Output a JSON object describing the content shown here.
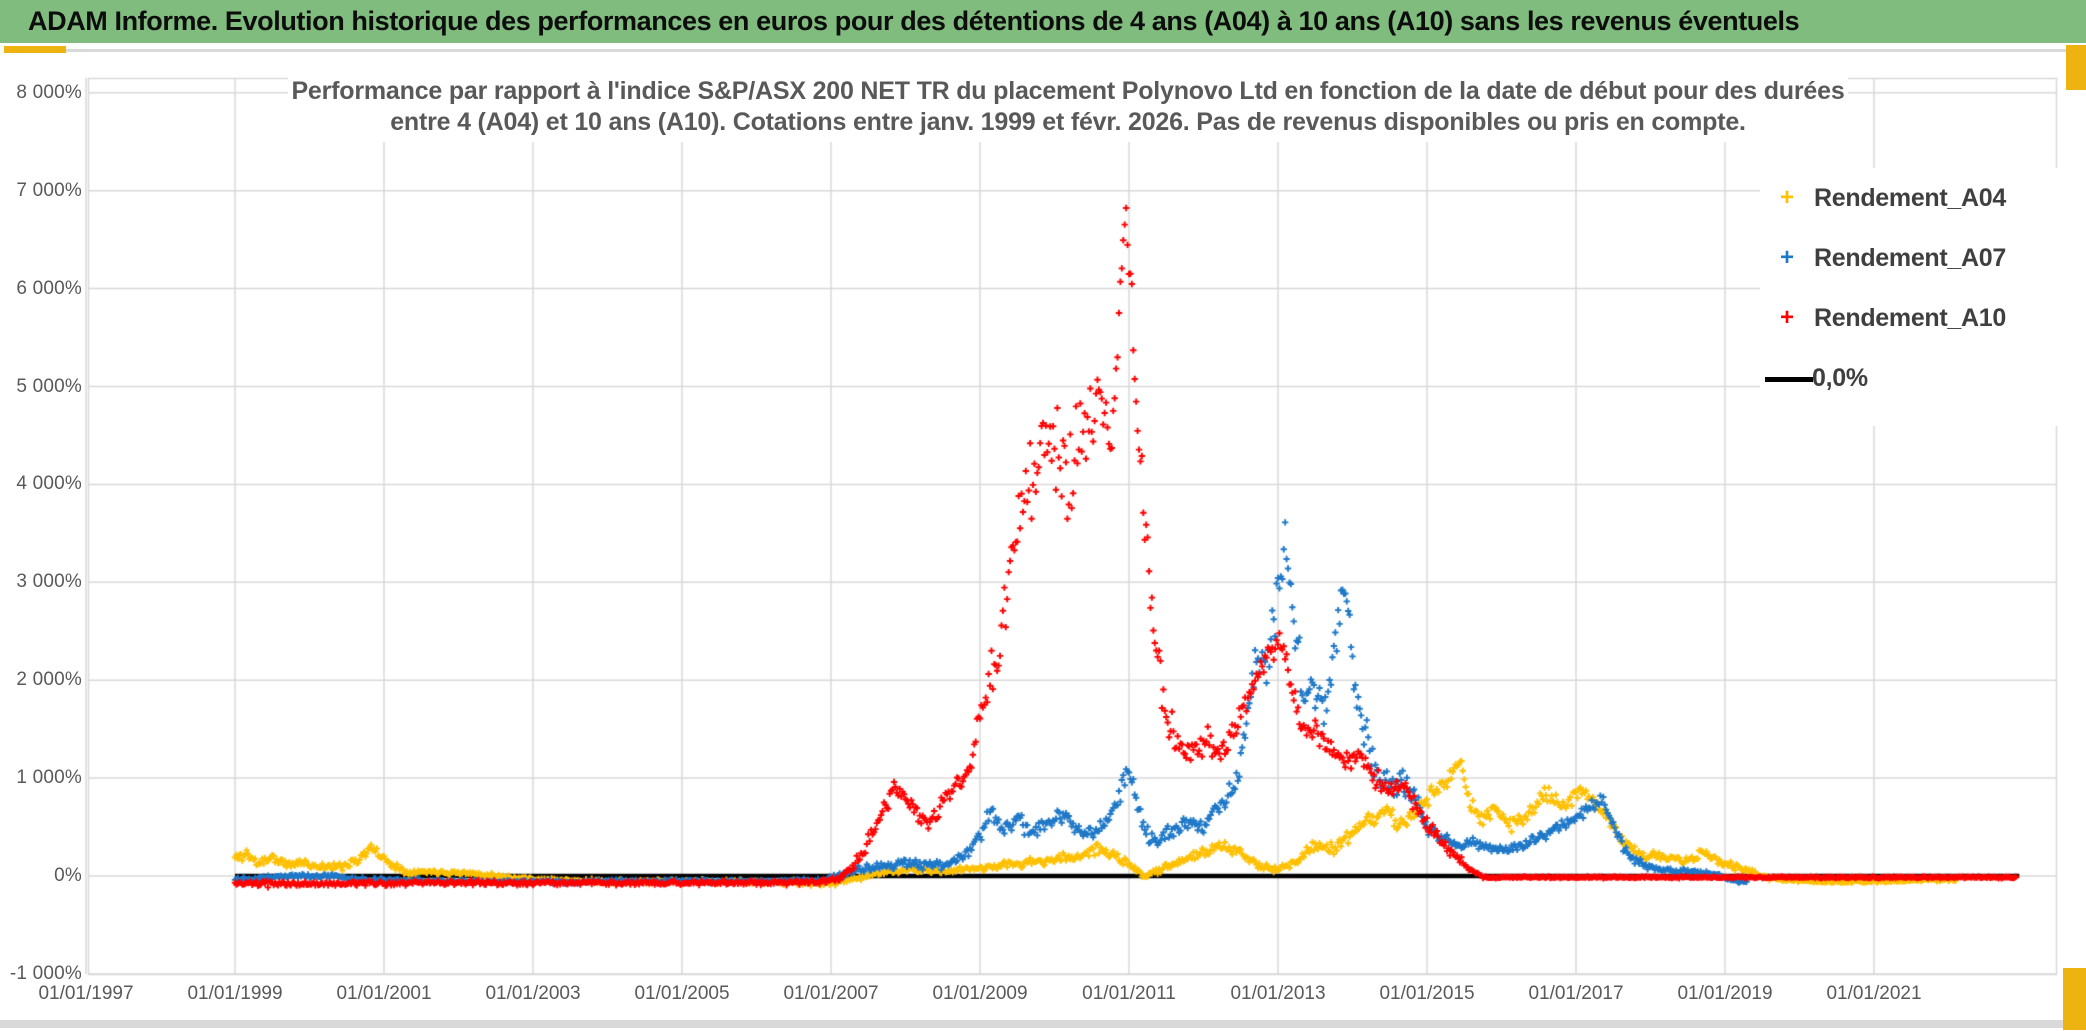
{
  "header": {
    "title": "ADAM Informe. Evolution historique des performances en euros pour des détentions de 4 ans (A04) à 10 ans (A10) sans les revenus éventuels"
  },
  "colors": {
    "header_bg": "#7FBC7D",
    "accent_gold": "#EDB411",
    "grid": "#D9D9D9",
    "axis_text": "#595959",
    "title_text": "#595959",
    "legend_text": "#3F3F3F",
    "series_a04": "#FFC000",
    "series_a07": "#1E78C8",
    "series_a10": "#FF0000",
    "zero_line": "#000000"
  },
  "chart_data": {
    "type": "scatter",
    "title": "Performance par rapport à l'indice S&P/ASX 200 NET TR  du placement Polynovo Ltd en fonction de la date de début pour des durées entre 4 (A04) et 10 ans (A10). Cotations entre janv. 1999 et févr. 2026. Pas de revenus disponibles ou pris en compte.",
    "grid": true,
    "legend_position": "right-inside",
    "x_axis": {
      "tick_years": [
        1997,
        1999,
        2001,
        2003,
        2005,
        2007,
        2009,
        2011,
        2013,
        2015,
        2017,
        2019,
        2021
      ],
      "tick_labels": [
        "01/01/1997",
        "01/01/1999",
        "01/01/2001",
        "01/01/2003",
        "01/01/2005",
        "01/01/2007",
        "01/01/2009",
        "01/01/2011",
        "01/01/2013",
        "01/01/2015",
        "01/01/2017",
        "01/01/2019",
        "01/01/2021"
      ],
      "min_year": 1997,
      "max_year": 2023.3
    },
    "y_axis": {
      "tick_values": [
        8000,
        7000,
        6000,
        5000,
        4000,
        3000,
        2000,
        1000,
        0,
        -1000
      ],
      "tick_labels": [
        "8 000%",
        "7 000%",
        "6 000%",
        "5 000%",
        "4 000%",
        "3 000%",
        "2 000%",
        "1 000%",
        "0%",
        "-1 000%"
      ],
      "min": -1000,
      "max": 8150,
      "unit": "%"
    },
    "legend": [
      {
        "label": "Rendement_A04",
        "color": "#FFC000",
        "marker": "plus"
      },
      {
        "label": "Rendement_A07",
        "color": "#1E78C8",
        "marker": "plus"
      },
      {
        "label": "Rendement_A10",
        "color": "#FF0000",
        "marker": "plus"
      },
      {
        "label": "0,0%",
        "color": "#000000",
        "marker": "line"
      }
    ],
    "zero_line": {
      "label": "0,0%",
      "value": 0,
      "start_year": 1999.0,
      "end_year": 2022.95,
      "color": "#000000"
    },
    "sampling_note": "dense weekly '+' scatter; each series encoded as [start_year_decimal, performance_pct, vertical_spread_pct] anchors estimated from gridlines",
    "series": [
      {
        "name": "Rendement_A04",
        "color": "#FFC000",
        "seed": 11,
        "points_per_year": 52,
        "anchors": [
          [
            1999.0,
            180,
            60
          ],
          [
            1999.15,
            230,
            60
          ],
          [
            1999.3,
            130,
            45
          ],
          [
            1999.5,
            190,
            55
          ],
          [
            1999.7,
            110,
            40
          ],
          [
            1999.9,
            140,
            45
          ],
          [
            2000.1,
            100,
            40
          ],
          [
            2000.4,
            90,
            40
          ],
          [
            2000.65,
            170,
            50
          ],
          [
            2000.85,
            290,
            55
          ],
          [
            2001.0,
            170,
            50
          ],
          [
            2001.3,
            40,
            25
          ],
          [
            2001.7,
            45,
            25
          ],
          [
            2002.2,
            25,
            20
          ],
          [
            2002.8,
            -20,
            20
          ],
          [
            2003.5,
            -50,
            20
          ],
          [
            2004.5,
            -60,
            20
          ],
          [
            2005.5,
            -55,
            20
          ],
          [
            2006.5,
            -65,
            22
          ],
          [
            2006.9,
            -85,
            25
          ],
          [
            2007.3,
            -30,
            25
          ],
          [
            2007.7,
            40,
            28
          ],
          [
            2008.1,
            65,
            30
          ],
          [
            2008.5,
            45,
            28
          ],
          [
            2009.0,
            85,
            35
          ],
          [
            2009.5,
            125,
            40
          ],
          [
            2010.0,
            165,
            45
          ],
          [
            2010.35,
            210,
            50
          ],
          [
            2010.6,
            290,
            60
          ],
          [
            2010.8,
            200,
            50
          ],
          [
            2011.0,
            120,
            40
          ],
          [
            2011.2,
            -15,
            25
          ],
          [
            2011.45,
            90,
            35
          ],
          [
            2011.7,
            150,
            40
          ],
          [
            2011.95,
            230,
            50
          ],
          [
            2012.2,
            300,
            55
          ],
          [
            2012.5,
            235,
            50
          ],
          [
            2012.8,
            90,
            40
          ],
          [
            2013.0,
            65,
            35
          ],
          [
            2013.25,
            160,
            45
          ],
          [
            2013.5,
            320,
            55
          ],
          [
            2013.75,
            280,
            55
          ],
          [
            2014.0,
            430,
            65
          ],
          [
            2014.25,
            570,
            75
          ],
          [
            2014.45,
            700,
            75
          ],
          [
            2014.6,
            510,
            70
          ],
          [
            2014.8,
            610,
            75
          ],
          [
            2015.0,
            790,
            85
          ],
          [
            2015.25,
            950,
            95
          ],
          [
            2015.45,
            1160,
            90
          ],
          [
            2015.6,
            700,
            85
          ],
          [
            2015.75,
            560,
            75
          ],
          [
            2015.9,
            720,
            85
          ],
          [
            2016.1,
            510,
            75
          ],
          [
            2016.35,
            630,
            80
          ],
          [
            2016.6,
            860,
            85
          ],
          [
            2016.8,
            710,
            80
          ],
          [
            2017.05,
            900,
            85
          ],
          [
            2017.25,
            740,
            80
          ],
          [
            2017.45,
            590,
            75
          ],
          [
            2017.65,
            340,
            60
          ],
          [
            2017.85,
            225,
            50
          ],
          [
            2018.15,
            195,
            45
          ],
          [
            2018.45,
            150,
            40
          ],
          [
            2018.7,
            225,
            50
          ],
          [
            2019.0,
            125,
            38
          ],
          [
            2019.3,
            60,
            28
          ],
          [
            2019.6,
            -25,
            18
          ],
          [
            2020.0,
            -50,
            15
          ],
          [
            2020.6,
            -60,
            14
          ],
          [
            2021.2,
            -55,
            14
          ],
          [
            2021.7,
            -40,
            14
          ],
          [
            2022.1,
            -35,
            14
          ]
        ]
      },
      {
        "name": "Rendement_A07",
        "color": "#1E78C8",
        "seed": 22,
        "points_per_year": 52,
        "anchors": [
          [
            1999.0,
            -30,
            22
          ],
          [
            1999.6,
            -5,
            22
          ],
          [
            2000.2,
            5,
            22
          ],
          [
            2000.7,
            -35,
            20
          ],
          [
            2001.5,
            -50,
            18
          ],
          [
            2002.5,
            -60,
            18
          ],
          [
            2003.5,
            -60,
            18
          ],
          [
            2004.5,
            -55,
            18
          ],
          [
            2005.5,
            -50,
            18
          ],
          [
            2006.3,
            -55,
            18
          ],
          [
            2006.9,
            -40,
            20
          ],
          [
            2007.3,
            50,
            35
          ],
          [
            2007.7,
            110,
            45
          ],
          [
            2008.1,
            130,
            50
          ],
          [
            2008.5,
            110,
            45
          ],
          [
            2008.8,
            190,
            55
          ],
          [
            2009.0,
            430,
            80
          ],
          [
            2009.15,
            640,
            85
          ],
          [
            2009.3,
            490,
            75
          ],
          [
            2009.5,
            570,
            75
          ],
          [
            2009.7,
            440,
            70
          ],
          [
            2009.9,
            550,
            75
          ],
          [
            2010.1,
            610,
            75
          ],
          [
            2010.3,
            470,
            70
          ],
          [
            2010.5,
            420,
            65
          ],
          [
            2010.7,
            540,
            75
          ],
          [
            2010.88,
            850,
            100
          ],
          [
            2011.0,
            1080,
            110
          ],
          [
            2011.1,
            780,
            95
          ],
          [
            2011.25,
            420,
            75
          ],
          [
            2011.4,
            340,
            65
          ],
          [
            2011.6,
            490,
            75
          ],
          [
            2011.8,
            550,
            75
          ],
          [
            2012.0,
            510,
            75
          ],
          [
            2012.2,
            690,
            90
          ],
          [
            2012.4,
            890,
            110
          ],
          [
            2012.55,
            1350,
            170
          ],
          [
            2012.7,
            2300,
            280
          ],
          [
            2012.85,
            2050,
            250
          ],
          [
            2013.0,
            2850,
            330
          ],
          [
            2013.1,
            3700,
            260
          ],
          [
            2013.2,
            2600,
            280
          ],
          [
            2013.35,
            1950,
            240
          ],
          [
            2013.5,
            1900,
            200
          ],
          [
            2013.65,
            1650,
            200
          ],
          [
            2013.8,
            2550,
            280
          ],
          [
            2013.9,
            2950,
            230
          ],
          [
            2014.0,
            2050,
            240
          ],
          [
            2014.15,
            1500,
            190
          ],
          [
            2014.3,
            1100,
            150
          ],
          [
            2014.5,
            920,
            120
          ],
          [
            2014.7,
            1000,
            140
          ],
          [
            2014.85,
            800,
            115
          ],
          [
            2015.0,
            520,
            80
          ],
          [
            2015.2,
            390,
            60
          ],
          [
            2015.4,
            310,
            50
          ],
          [
            2015.6,
            350,
            55
          ],
          [
            2015.8,
            290,
            50
          ],
          [
            2016.0,
            260,
            48
          ],
          [
            2016.3,
            310,
            50
          ],
          [
            2016.6,
            430,
            58
          ],
          [
            2016.9,
            560,
            65
          ],
          [
            2017.1,
            660,
            68
          ],
          [
            2017.35,
            780,
            70
          ],
          [
            2017.55,
            430,
            65
          ],
          [
            2017.75,
            170,
            48
          ],
          [
            2018.0,
            85,
            30
          ],
          [
            2018.3,
            55,
            24
          ],
          [
            2018.6,
            45,
            20
          ],
          [
            2018.9,
            15,
            15
          ],
          [
            2019.1,
            -45,
            14
          ],
          [
            2019.3,
            -60,
            13
          ]
        ]
      },
      {
        "name": "Rendement_A10",
        "color": "#FF0000",
        "seed": 33,
        "points_per_year": 52,
        "anchors": [
          [
            1999.0,
            -80,
            28
          ],
          [
            2000.0,
            -80,
            26
          ],
          [
            2001.0,
            -75,
            24
          ],
          [
            2002.0,
            -70,
            24
          ],
          [
            2003.0,
            -70,
            23
          ],
          [
            2004.0,
            -70,
            23
          ],
          [
            2005.0,
            -70,
            23
          ],
          [
            2006.0,
            -70,
            23
          ],
          [
            2006.8,
            -60,
            25
          ],
          [
            2007.1,
            -30,
            30
          ],
          [
            2007.4,
            180,
            60
          ],
          [
            2007.6,
            520,
            80
          ],
          [
            2007.85,
            900,
            95
          ],
          [
            2008.0,
            800,
            90
          ],
          [
            2008.15,
            680,
            85
          ],
          [
            2008.3,
            490,
            75
          ],
          [
            2008.5,
            790,
            90
          ],
          [
            2008.75,
            950,
            100
          ],
          [
            2008.95,
            1400,
            150
          ],
          [
            2009.1,
            1900,
            200
          ],
          [
            2009.25,
            2300,
            260
          ],
          [
            2009.4,
            3200,
            340
          ],
          [
            2009.6,
            3850,
            400
          ],
          [
            2009.8,
            4250,
            440
          ],
          [
            2010.0,
            4450,
            480
          ],
          [
            2010.2,
            4150,
            440
          ],
          [
            2010.4,
            4650,
            400
          ],
          [
            2010.6,
            4950,
            340
          ],
          [
            2010.75,
            4450,
            300
          ],
          [
            2010.85,
            5250,
            260
          ],
          [
            2010.95,
            6900,
            330
          ],
          [
            2011.05,
            5500,
            400
          ],
          [
            2011.18,
            3900,
            420
          ],
          [
            2011.33,
            2500,
            300
          ],
          [
            2011.5,
            1550,
            210
          ],
          [
            2011.7,
            1300,
            140
          ],
          [
            2011.9,
            1280,
            130
          ],
          [
            2012.05,
            1450,
            140
          ],
          [
            2012.2,
            1220,
            120
          ],
          [
            2012.4,
            1500,
            130
          ],
          [
            2012.6,
            1800,
            150
          ],
          [
            2012.8,
            2120,
            180
          ],
          [
            2013.0,
            2430,
            160
          ],
          [
            2013.15,
            2050,
            150
          ],
          [
            2013.3,
            1550,
            130
          ],
          [
            2013.5,
            1480,
            110
          ],
          [
            2013.7,
            1320,
            105
          ],
          [
            2013.9,
            1130,
            100
          ],
          [
            2014.1,
            1230,
            100
          ],
          [
            2014.3,
            1010,
            95
          ],
          [
            2014.5,
            860,
            85
          ],
          [
            2014.7,
            920,
            85
          ],
          [
            2014.9,
            660,
            75
          ],
          [
            2015.1,
            460,
            65
          ],
          [
            2015.3,
            260,
            50
          ],
          [
            2015.55,
            90,
            35
          ],
          [
            2015.75,
            -12,
            9
          ],
          [
            2016.5,
            -14,
            8
          ],
          [
            2018.0,
            -14,
            8
          ],
          [
            2020.0,
            -14,
            8
          ],
          [
            2022.0,
            -14,
            8
          ],
          [
            2022.92,
            -14,
            8
          ]
        ]
      }
    ]
  }
}
